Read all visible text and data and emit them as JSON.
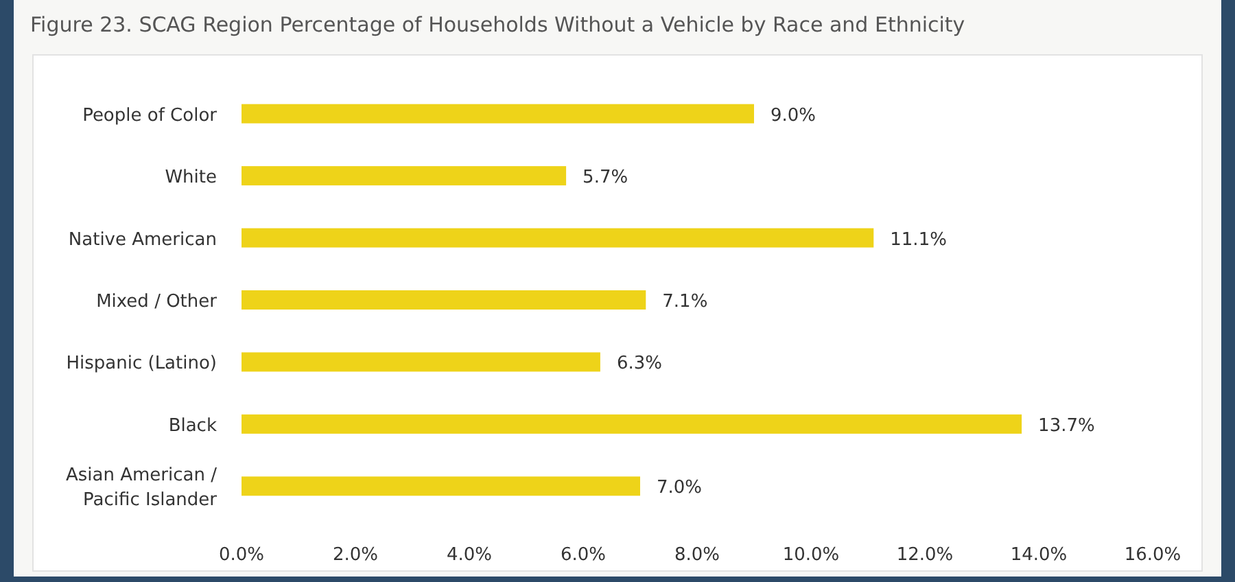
{
  "chart_data": {
    "type": "bar",
    "orientation": "horizontal",
    "title": "Figure 23. SCAG Region Percentage of Households Without a Vehicle by Race and Ethnicity",
    "categories": [
      "People of Color",
      "White",
      "Native American",
      "Mixed / Other",
      "Hispanic (Latino)",
      "Black",
      "Asian American / Pacific Islander"
    ],
    "values": [
      9.0,
      5.7,
      11.1,
      7.1,
      6.3,
      13.7,
      7.0
    ],
    "value_labels": [
      "9.0%",
      "5.7%",
      "11.1%",
      "7.1%",
      "6.3%",
      "13.7%",
      "7.0%"
    ],
    "color": "#eed319",
    "xlim": [
      0,
      16
    ],
    "xticks": [
      {
        "value": 0,
        "label": "0.0%"
      },
      {
        "value": 2,
        "label": "2.0%"
      },
      {
        "value": 4,
        "label": "4.0%"
      },
      {
        "value": 6,
        "label": "6.0%"
      },
      {
        "value": 8,
        "label": "8.0%"
      },
      {
        "value": 10,
        "label": "10.0%"
      },
      {
        "value": 12,
        "label": "12.0%"
      },
      {
        "value": 14,
        "label": "14.0%"
      },
      {
        "value": 16,
        "label": "16.0%"
      }
    ],
    "grid": false
  }
}
